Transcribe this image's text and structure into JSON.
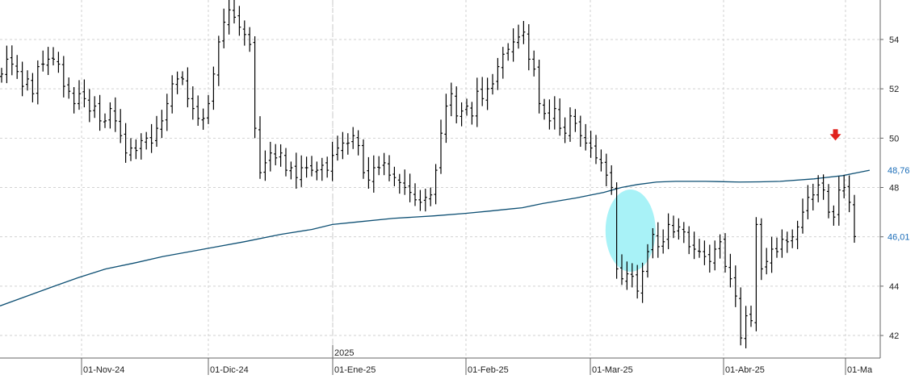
{
  "chart_data": {
    "type": "ohlc",
    "x_axis": {
      "tick_labels": [
        "01-Nov-24",
        "01-Dic-24",
        "01-Ene-25",
        "01-Feb-25",
        "01-Mar-25",
        "01-Abr-25",
        "01-Ma"
      ],
      "year_marker": "2025"
    },
    "y_axis": {
      "position": "right",
      "ticks": [
        42,
        44,
        46,
        48,
        50,
        52,
        54
      ],
      "tick_labels": [
        "42",
        "44",
        "46",
        "48",
        "50",
        "52",
        "54"
      ],
      "ylim": [
        40.4,
        55.6
      ]
    },
    "grid": true,
    "price_series": {
      "color": "#000000",
      "closes": [
        52.6,
        53.2,
        53.0,
        52.7,
        52.1,
        52.4,
        51.8,
        52.9,
        53.0,
        53.2,
        53.2,
        53.0,
        52.1,
        51.9,
        51.4,
        51.8,
        51.6,
        51.1,
        51.3,
        50.7,
        50.7,
        51.2,
        50.7,
        50.1,
        49.4,
        49.6,
        49.5,
        49.9,
        50.0,
        49.8,
        50.4,
        50.7,
        51.4,
        52.2,
        52.4,
        52.4,
        51.6,
        51.2,
        50.8,
        50.8,
        51.4,
        52.6,
        53.9,
        54.7,
        55.2,
        54.9,
        54.5,
        54.2,
        53.8,
        50.4,
        48.6,
        49.0,
        49.4,
        49.2,
        49.4,
        48.7,
        48.8,
        48.4,
        48.8,
        48.8,
        48.7,
        48.7,
        48.9,
        48.7,
        49.3,
        49.6,
        49.8,
        49.8,
        50.1,
        49.7,
        48.6,
        48.3,
        48.8,
        48.8,
        49.0,
        48.5,
        48.4,
        48.2,
        48.0,
        47.8,
        47.5,
        47.4,
        47.6,
        47.7,
        48.7,
        50.2,
        51.3,
        51.8,
        50.9,
        51.1,
        51.3,
        50.9,
        51.9,
        51.6,
        52.0,
        52.2,
        52.9,
        53.4,
        53.6,
        53.9,
        54.1,
        54.3,
        53.2,
        52.8,
        51.4,
        51.0,
        50.7,
        51.2,
        50.4,
        50.2,
        50.9,
        50.6,
        50.1,
        49.8,
        49.6,
        49.2,
        49.0,
        48.5,
        48.0,
        44.7,
        44.3,
        44.5,
        44.4,
        43.8,
        44.6,
        45.4,
        46.1,
        45.6,
        45.8,
        46.5,
        46.2,
        46.4,
        46.2,
        45.6,
        45.5,
        45.4,
        45.2,
        45.0,
        45.5,
        45.8,
        44.8,
        44.3,
        43.6,
        41.9,
        42.8,
        42.6,
        46.5,
        44.7,
        45.0,
        45.5,
        45.4,
        45.9,
        45.8,
        46.0,
        46.4,
        47.0,
        47.6,
        47.7,
        48.1,
        47.9,
        47.0,
        46.8,
        47.9,
        48.0,
        47.4,
        46.01
      ]
    },
    "moving_average": {
      "color": "#0d4f73",
      "last_value_label": "48,76",
      "points": [
        [
          0,
          43.2
        ],
        [
          20,
          43.6
        ],
        [
          40,
          44.0
        ],
        [
          58,
          44.35
        ],
        [
          78,
          44.7
        ],
        [
          100,
          44.95
        ],
        [
          120,
          45.2
        ],
        [
          150,
          45.5
        ],
        [
          180,
          45.8
        ],
        [
          207,
          46.1
        ],
        [
          230,
          46.3
        ],
        [
          245,
          46.5
        ],
        [
          263,
          46.6
        ],
        [
          290,
          46.75
        ],
        [
          320,
          46.85
        ],
        [
          343,
          46.95
        ],
        [
          362,
          47.05
        ],
        [
          385,
          47.18
        ],
        [
          400,
          47.35
        ],
        [
          425,
          47.58
        ],
        [
          445,
          47.8
        ],
        [
          458,
          48.0
        ],
        [
          470,
          48.12
        ],
        [
          484,
          48.22
        ],
        [
          498,
          48.25
        ],
        [
          520,
          48.25
        ],
        [
          545,
          48.22
        ],
        [
          560,
          48.23
        ],
        [
          575,
          48.25
        ],
        [
          600,
          48.35
        ],
        [
          621,
          48.48
        ],
        [
          632,
          48.6
        ],
        [
          641,
          48.7
        ]
      ]
    },
    "current_price_label": "46,01",
    "annotations": [
      {
        "type": "down-arrow",
        "color": "#e0211c",
        "x_index": 627,
        "y_value": 50.1
      },
      {
        "type": "highlight-ellipse",
        "color": "#a8f2f7",
        "x_index": 488,
        "y_value": 46.25
      }
    ]
  }
}
